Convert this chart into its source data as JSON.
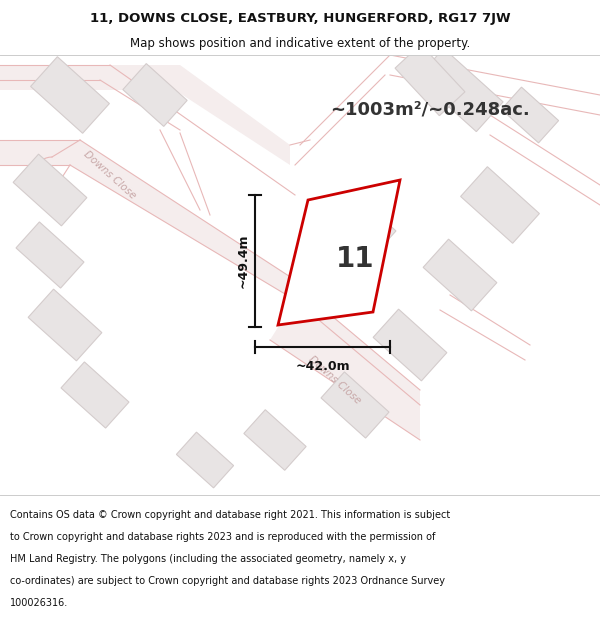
{
  "title_line1": "11, DOWNS CLOSE, EASTBURY, HUNGERFORD, RG17 7JW",
  "title_line2": "Map shows position and indicative extent of the property.",
  "area_text": "~1003m²/~0.248ac.",
  "dimension_width": "~42.0m",
  "dimension_height": "~49.4m",
  "plot_number": "11",
  "footer_lines": [
    "Contains OS data © Crown copyright and database right 2021. This information is subject",
    "to Crown copyright and database rights 2023 and is reproduced with the permission of",
    "HM Land Registry. The polygons (including the associated geometry, namely x, y",
    "co-ordinates) are subject to Crown copyright and database rights 2023 Ordnance Survey",
    "100026316."
  ],
  "map_bg": "#fafafa",
  "road_fill": "#f5eded",
  "road_line": "#e8b8b8",
  "road_line_lw": 0.8,
  "building_fill": "#e8e4e4",
  "building_edge": "#d4cccc",
  "plot_color": "#cc0000",
  "plot_lw": 2.0,
  "dim_color": "#111111",
  "label_color": "#333333",
  "road_text_color": "#c8a8a8",
  "title_color": "#111111",
  "footer_color": "#111111"
}
